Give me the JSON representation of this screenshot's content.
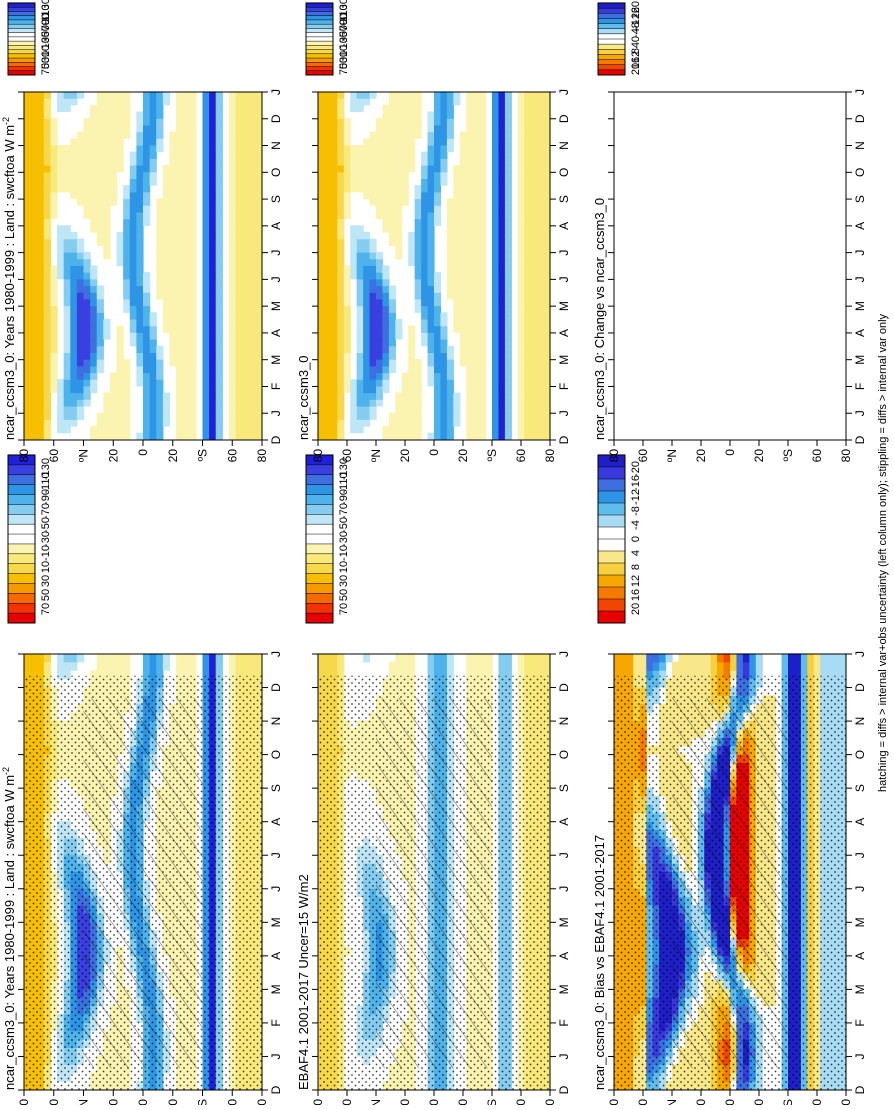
{
  "figure": {
    "footnote": "hatching = diffs > internal var+obs uncertainty (left column only); stippling = diffs > internal var only"
  },
  "colors": {
    "abs_palette": [
      "#e60000",
      "#f23300",
      "#f56a00",
      "#f59b00",
      "#f6c000",
      "#f7d84a",
      "#f8e97a",
      "#fbf3b0",
      "#ffffff",
      "#ffffff",
      "#bfe6f7",
      "#85cdf0",
      "#4eb3ea",
      "#2e95e6",
      "#3d6fe0",
      "#3a3fe0",
      "#2020d8"
    ],
    "diff_palette": [
      "#e60000",
      "#f24500",
      "#f57a00",
      "#f6a800",
      "#f7d040",
      "#f8e88a",
      "#ffffff",
      "#ffffff",
      "#a8dcf5",
      "#5fbdee",
      "#2e95e6",
      "#3d6fe0",
      "#3838dc",
      "#1f1fc8"
    ]
  },
  "chart_data": [
    {
      "type": "heatmap",
      "panel": "left-top",
      "title": "ncar_ccsm3_0: Years 1980-1999 : Land : swcftoa W m",
      "title_sup": "-2",
      "x": [
        "D",
        "J",
        "F",
        "M",
        "A",
        "M",
        "J",
        "J",
        "A",
        "S",
        "O",
        "N",
        "D",
        "J"
      ],
      "y_ticks": [
        "80",
        "60",
        "ºN",
        "20",
        "0",
        "20",
        "ºS",
        "60",
        "80"
      ],
      "colorbar": [
        "70",
        "50",
        "30",
        "10",
        "-10",
        "-30",
        "-50",
        "-70",
        "-90",
        "-110",
        "-130"
      ],
      "overlay": [
        "hatching",
        "stippling"
      ],
      "pattern": "abs"
    },
    {
      "type": "heatmap",
      "panel": "right-top",
      "title": "ncar_ccsm3_0: Years 1980-1999 : Land : swcftoa W m",
      "title_sup": "-2",
      "x": [
        "D",
        "J",
        "F",
        "M",
        "A",
        "M",
        "J",
        "J",
        "A",
        "S",
        "O",
        "N",
        "D",
        "J"
      ],
      "y_ticks": [
        "80",
        "60",
        "ºN",
        "20",
        "0",
        "20",
        "ºS",
        "60",
        "80"
      ],
      "colorbar": [
        "70",
        "50",
        "30",
        "10",
        "-10",
        "-30",
        "-50",
        "-70",
        "-90",
        "-110",
        "-130"
      ],
      "pattern": "abs"
    },
    {
      "type": "heatmap",
      "panel": "left-middle",
      "title": "EBAF4.1 2001-2017 Uncer=15 W/m2",
      "x": [
        "D",
        "J",
        "F",
        "M",
        "A",
        "M",
        "J",
        "J",
        "A",
        "S",
        "O",
        "N",
        "D",
        "J"
      ],
      "y_ticks": [
        "80",
        "60",
        "ºN",
        "20",
        "0",
        "20",
        "ºS",
        "60",
        "80"
      ],
      "colorbar": [
        "70",
        "50",
        "30",
        "10",
        "-10",
        "-30",
        "-50",
        "-70",
        "-90",
        "-110",
        "-130"
      ],
      "overlay": [
        "hatching",
        "stippling"
      ],
      "pattern": "obs"
    },
    {
      "type": "heatmap",
      "panel": "right-middle",
      "title": "ncar_ccsm3_0",
      "x": [
        "D",
        "J",
        "F",
        "M",
        "A",
        "M",
        "J",
        "J",
        "A",
        "S",
        "O",
        "N",
        "D",
        "J"
      ],
      "y_ticks": [
        "80",
        "60",
        "ºN",
        "20",
        "0",
        "20",
        "ºS",
        "60",
        "80"
      ],
      "colorbar": [
        "70",
        "50",
        "30",
        "10",
        "-10",
        "-30",
        "-50",
        "-70",
        "-90",
        "-110",
        "-130"
      ],
      "pattern": "abs"
    },
    {
      "type": "heatmap",
      "panel": "left-bottom",
      "title": "ncar_ccsm3_0: Bias vs EBAF4.1 2001-2017",
      "x": [
        "D",
        "J",
        "F",
        "M",
        "A",
        "M",
        "J",
        "J",
        "A",
        "S",
        "O",
        "N",
        "D",
        "J"
      ],
      "y_ticks": [
        "80",
        "60",
        "ºN",
        "20",
        "0",
        "20",
        "ºS",
        "60",
        "80"
      ],
      "colorbar": [
        "20",
        "16",
        "12",
        "8",
        "4",
        "0",
        "-4",
        "-8",
        "-12",
        "-16",
        "-20"
      ],
      "overlay": [
        "hatching",
        "stippling"
      ],
      "pattern": "bias"
    },
    {
      "type": "heatmap",
      "panel": "right-bottom",
      "title": "ncar_ccsm3_0: Change vs ncar_ccsm3_0",
      "x": [
        "D",
        "J",
        "F",
        "M",
        "A",
        "M",
        "J",
        "J",
        "A",
        "S",
        "O",
        "N",
        "D",
        "J"
      ],
      "y_ticks": [
        "80",
        "60",
        "ºN",
        "20",
        "0",
        "20",
        "ºS",
        "60",
        "80"
      ],
      "colorbar": [
        "20",
        "16",
        "12",
        "8",
        "4",
        "0",
        "-4",
        "-8",
        "-12",
        "-16",
        "-20"
      ],
      "pattern": "empty"
    }
  ]
}
